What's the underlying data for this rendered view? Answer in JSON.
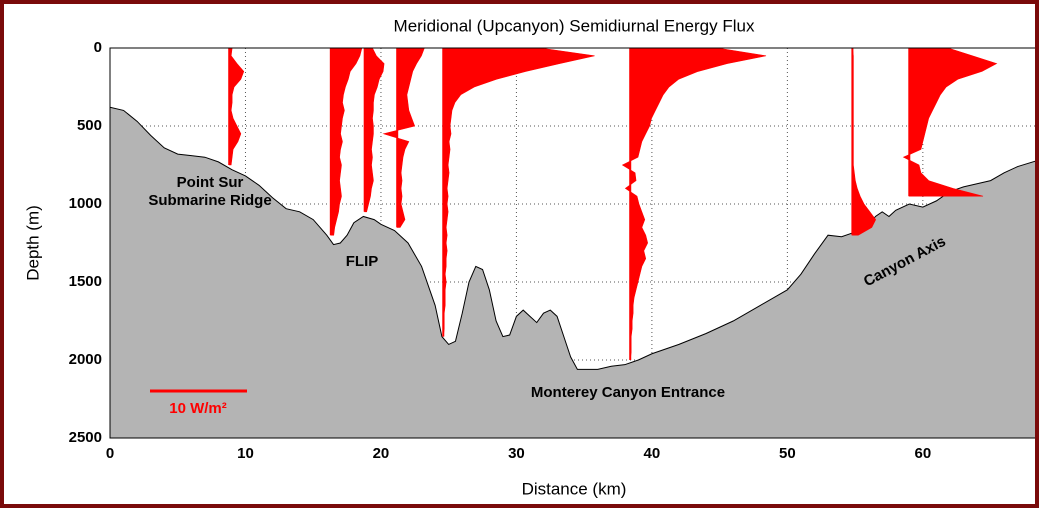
{
  "chart_data": {
    "type": "profiles",
    "title": "Meridional (Upcanyon) Semidiurnal Energy Flux",
    "x_label": "Distance (km)",
    "y_label": "Depth (m)",
    "xlim": [
      0,
      68.5
    ],
    "ylim": [
      2500,
      0
    ],
    "xticks": [
      0,
      10,
      20,
      30,
      40,
      50,
      60
    ],
    "yticks": [
      0,
      500,
      1000,
      1500,
      2000,
      2500
    ],
    "grid": true,
    "bathymetry": {
      "color": "#b4b4b4",
      "x": [
        0,
        1,
        2,
        3,
        4,
        5,
        6,
        7,
        8,
        9,
        10,
        11,
        12,
        13,
        14,
        15,
        16,
        16.5,
        17,
        17.5,
        18,
        18.7,
        19.5,
        20,
        21,
        22,
        23,
        24,
        24.5,
        25,
        25.5,
        26,
        26.5,
        27,
        27.5,
        28,
        28.5,
        29,
        29.5,
        30,
        30.5,
        31,
        31.5,
        32,
        32.5,
        33,
        33.5,
        34,
        34.5,
        36,
        37,
        38,
        39,
        40,
        42,
        44,
        46,
        48,
        50,
        51,
        52,
        52.5,
        53,
        54,
        55,
        56,
        56.5,
        57,
        57.5,
        58,
        59,
        60,
        61,
        62,
        63,
        64,
        65,
        66,
        67,
        68.5
      ],
      "depth": [
        380,
        400,
        470,
        560,
        640,
        680,
        690,
        700,
        730,
        780,
        820,
        880,
        960,
        1030,
        1050,
        1100,
        1200,
        1260,
        1250,
        1200,
        1120,
        1080,
        1100,
        1130,
        1170,
        1250,
        1400,
        1650,
        1850,
        1900,
        1880,
        1700,
        1500,
        1400,
        1420,
        1550,
        1750,
        1850,
        1840,
        1720,
        1680,
        1720,
        1760,
        1700,
        1680,
        1720,
        1850,
        1980,
        2060,
        2060,
        2040,
        2030,
        2000,
        1960,
        1900,
        1830,
        1750,
        1650,
        1550,
        1450,
        1320,
        1260,
        1200,
        1210,
        1180,
        1140,
        1080,
        1050,
        1080,
        1040,
        1000,
        1020,
        980,
        920,
        890,
        870,
        850,
        800,
        760,
        720
      ]
    },
    "profile_color": "#ff0000",
    "stations": [
      {
        "x": 8.8,
        "depths": [
          0,
          50,
          100,
          150,
          200,
          250,
          300,
          350,
          400,
          450,
          500,
          550,
          600,
          650,
          700,
          750
        ],
        "values": [
          0.3,
          0.2,
          0.8,
          1.5,
          1.2,
          0.5,
          0.3,
          0.3,
          0.2,
          0.4,
          0.8,
          1.2,
          0.9,
          0.4,
          0.3,
          0.2
        ]
      },
      {
        "x": 16.3,
        "depths": [
          0,
          50,
          100,
          150,
          200,
          250,
          300,
          350,
          400,
          450,
          500,
          550,
          600,
          650,
          700,
          750,
          800,
          850,
          900,
          950,
          1000,
          1050,
          1100,
          1150,
          1200
        ],
        "values": [
          3.2,
          3.0,
          2.6,
          2.0,
          1.8,
          1.5,
          1.3,
          1.2,
          1.4,
          1.2,
          1.1,
          1.0,
          1.2,
          1.0,
          0.9,
          1.1,
          1.0,
          0.9,
          1.0,
          1.1,
          0.9,
          0.8,
          0.6,
          0.4,
          0.3
        ]
      },
      {
        "x": 18.8,
        "depths": [
          0,
          50,
          100,
          150,
          200,
          250,
          300,
          350,
          400,
          450,
          500,
          550,
          600,
          650,
          700,
          750,
          800,
          850,
          900,
          950,
          1000,
          1050
        ],
        "values": [
          0.8,
          1.2,
          2.0,
          1.9,
          1.5,
          1.3,
          1.0,
          0.9,
          0.9,
          0.8,
          0.9,
          0.9,
          0.8,
          0.7,
          0.8,
          0.7,
          0.8,
          0.9,
          0.7,
          0.6,
          0.4,
          0.2
        ]
      },
      {
        "x": 21.2,
        "depths": [
          0,
          50,
          100,
          150,
          200,
          250,
          300,
          350,
          400,
          450,
          500,
          550,
          600,
          650,
          700,
          750,
          800,
          850,
          900,
          950,
          1000,
          1050,
          1100,
          1150
        ],
        "values": [
          2.8,
          2.5,
          2.0,
          1.6,
          1.4,
          1.2,
          1.0,
          1.1,
          1.2,
          1.5,
          1.8,
          -1.4,
          1.2,
          0.8,
          0.6,
          0.5,
          0.4,
          0.5,
          0.4,
          0.5,
          0.4,
          0.6,
          0.8,
          0.3
        ]
      },
      {
        "x": 24.6,
        "depths": [
          0,
          50,
          100,
          150,
          200,
          250,
          300,
          350,
          400,
          450,
          500,
          550,
          600,
          650,
          700,
          750,
          800,
          850,
          900,
          950,
          1000,
          1050,
          1100,
          1150,
          1200,
          1250,
          1300,
          1350,
          1400,
          1450,
          1500,
          1550,
          1600,
          1650,
          1700,
          1750,
          1800,
          1850
        ],
        "values": [
          10,
          15.6,
          12,
          8.5,
          5.5,
          3.2,
          1.8,
          1.2,
          0.9,
          0.8,
          0.7,
          0.8,
          0.6,
          0.7,
          0.6,
          0.5,
          0.6,
          0.5,
          0.4,
          0.5,
          0.4,
          0.5,
          0.4,
          0.3,
          0.4,
          0.3,
          0.4,
          0.3,
          0.3,
          0.2,
          0.3,
          0.2,
          0.2,
          0.2,
          0.1,
          0.1,
          0.1,
          0
        ]
      },
      {
        "x": 38.4,
        "depths": [
          0,
          50,
          100,
          150,
          200,
          250,
          300,
          350,
          400,
          450,
          500,
          550,
          600,
          650,
          700,
          750,
          800,
          850,
          900,
          950,
          1000,
          1050,
          1100,
          1150,
          1200,
          1250,
          1300,
          1350,
          1400,
          1450,
          1500,
          1550,
          1600,
          1650,
          1700,
          1750,
          1800,
          1850,
          1900,
          1950,
          2000
        ],
        "values": [
          9,
          14,
          10,
          7,
          5,
          4,
          3.4,
          3,
          2.6,
          2.2,
          2,
          1.6,
          1.2,
          1,
          0.8,
          -0.8,
          0.5,
          0.6,
          -0.5,
          0.7,
          0.9,
          1.2,
          1.5,
          1.2,
          1.6,
          1.8,
          1.4,
          1.6,
          1.2,
          1,
          0.8,
          0.6,
          0.4,
          0.3,
          0.3,
          0.2,
          0.2,
          0.1,
          0.1,
          0.1,
          0
        ]
      },
      {
        "x": 54.8,
        "depths": [
          0,
          50,
          100,
          150,
          200,
          250,
          300,
          350,
          400,
          450,
          500,
          550,
          600,
          650,
          700,
          750,
          800,
          850,
          900,
          950,
          1000,
          1050,
          1100,
          1150,
          1200
        ],
        "values": [
          0,
          0.1,
          0.1,
          0.1,
          0.1,
          0.1,
          0.1,
          0.1,
          0.1,
          0.1,
          0.1,
          0.1,
          0.1,
          0.1,
          0.1,
          0.1,
          0.2,
          0.3,
          0.5,
          0.8,
          1.2,
          1.8,
          2.4,
          2.0,
          0.6
        ]
      },
      {
        "x": 59.0,
        "depths": [
          0,
          50,
          100,
          150,
          200,
          250,
          300,
          350,
          400,
          450,
          500,
          550,
          600,
          650,
          700,
          750,
          800,
          850,
          900,
          950
        ],
        "values": [
          4,
          6.5,
          9,
          7.5,
          5,
          3.8,
          3.2,
          2.8,
          2.4,
          2.0,
          1.8,
          1.6,
          1.4,
          1.2,
          -0.6,
          1.0,
          1.2,
          2.0,
          4.5,
          7.6
        ]
      }
    ],
    "scale_bar": {
      "value": 10,
      "label": "10 W/m²"
    },
    "annotations": [
      "Point Sur",
      "Submarine Ridge",
      "FLIP",
      "Monterey Canyon Entrance",
      "Canyon Axis"
    ]
  }
}
